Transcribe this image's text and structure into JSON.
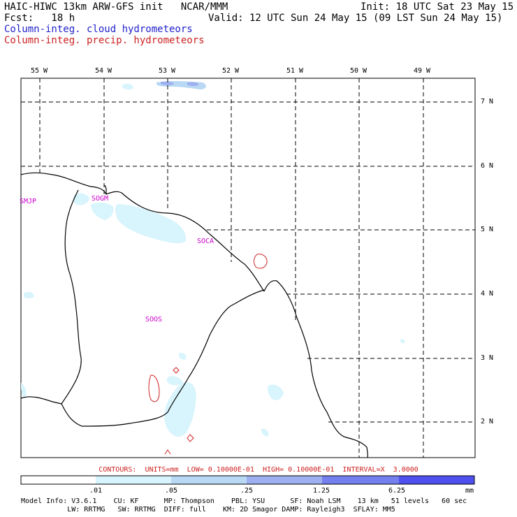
{
  "header": {
    "title_left": "HAIC-HIWC 13km ARW-GFS init   NCAR/MMM",
    "init": "Init: 18 UTC Sat 23 May 15",
    "fcst": "Fcst:   18 h",
    "valid": "Valid: 12 UTC Sun 24 May 15 (09 LST Sun 24 May 15)",
    "legend_cloud": "Column-integ. cloud hydrometeors",
    "legend_precip": "Column-integ. precip. hydrometeors"
  },
  "colors": {
    "cloud_title": "#2222cc",
    "precip_title": "#cc2222",
    "station": "#cc00cc",
    "cloud_fill": "#d8f4fc",
    "cloud_fill_2": "#9fb0f0",
    "precip_contour": "#cc2222"
  },
  "map": {
    "lon_labels": [
      "55 W",
      "54 W",
      "53 W",
      "52 W",
      "51 W",
      "50 W",
      "49 W"
    ],
    "lat_labels": [
      "7 N",
      "6 N",
      "5 N",
      "4 N",
      "3 N",
      "2 N"
    ],
    "stations": [
      "SMJP",
      "SOGM",
      "SOCA",
      "SOOS"
    ]
  },
  "footer": {
    "contours": "CONTOURS:  UNITS=mm  LOW= 0.10000E-01  HIGH= 0.10000E-01  INTERVAL=X  3.0000",
    "colorbar_labels": [
      ".01",
      ".05",
      ".25",
      "1.25",
      "6.25",
      "mm"
    ],
    "colorbar_colors": [
      "#ffffff",
      "#d8f4fc",
      "#b8d8f4",
      "#9fb0f0",
      "#7480ee",
      "#5050f0",
      "#1e1ee6"
    ],
    "model_info_1": "Model Info: V3.6.1    CU: KF      MP: Thompson    PBL: YSU      SF: Noah LSM    13 km   51 levels   60 sec",
    "model_info_2": "           LW: RRTMG   SW: RRTMG  DIFF: full    KM: 2D Smagor DAMP: Rayleigh3  SFLAY: MM5"
  }
}
